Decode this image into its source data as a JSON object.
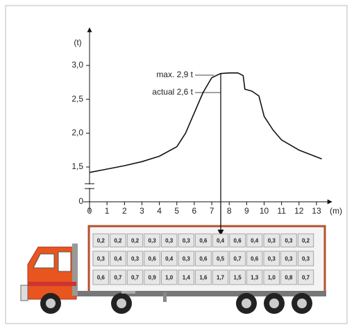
{
  "chart_data": {
    "type": "line",
    "y_label": "(t)",
    "x_label": "(m)",
    "x": [
      0,
      1,
      2,
      3,
      4,
      5,
      5.5,
      6,
      6.5,
      7,
      7.5,
      8,
      8.5,
      8.8,
      8.9,
      9.3,
      9.7,
      10,
      10.5,
      11,
      12,
      13.3
    ],
    "values": [
      1.42,
      1.47,
      1.52,
      1.58,
      1.66,
      1.8,
      2.0,
      2.3,
      2.6,
      2.82,
      2.88,
      2.89,
      2.89,
      2.85,
      2.65,
      2.62,
      2.55,
      2.25,
      2.05,
      1.9,
      1.75,
      1.62
    ],
    "color": "#111111",
    "xlim": [
      0,
      13.6
    ],
    "xticks": [
      0,
      1,
      2,
      3,
      4,
      5,
      6,
      7,
      8,
      9,
      10,
      11,
      12,
      13
    ],
    "ylim": [
      1.3,
      3.2
    ],
    "yticks": [
      {
        "value": 0,
        "label": "0"
      },
      {
        "value": 1.5,
        "label": "1,5"
      },
      {
        "value": 2.0,
        "label": "2,0"
      },
      {
        "value": 2.5,
        "label": "2,5"
      },
      {
        "value": 3.0,
        "label": "3,0"
      }
    ],
    "axis_break": true,
    "annotations": [
      "max. 2,9 t",
      "actual 2,6 t"
    ]
  },
  "load_table": {
    "rows": [
      [
        "0,2",
        "0,2",
        "0,2",
        "0,3",
        "0,3",
        "0,3",
        "0,6",
        "0,4",
        "0,6",
        "0,4",
        "0,3",
        "0,3",
        "0,2"
      ],
      [
        "0,3",
        "0,4",
        "0,3",
        "0,6",
        "0,4",
        "0,3",
        "0,6",
        "0,5",
        "0,7",
        "0,6",
        "0,3",
        "0,3",
        "0,3"
      ],
      [
        "0,6",
        "0,7",
        "0,7",
        "0,9",
        "1,0",
        "1,4",
        "1,6",
        "1,7",
        "1,5",
        "1,3",
        "1,0",
        "0,8",
        "0,7"
      ]
    ]
  }
}
